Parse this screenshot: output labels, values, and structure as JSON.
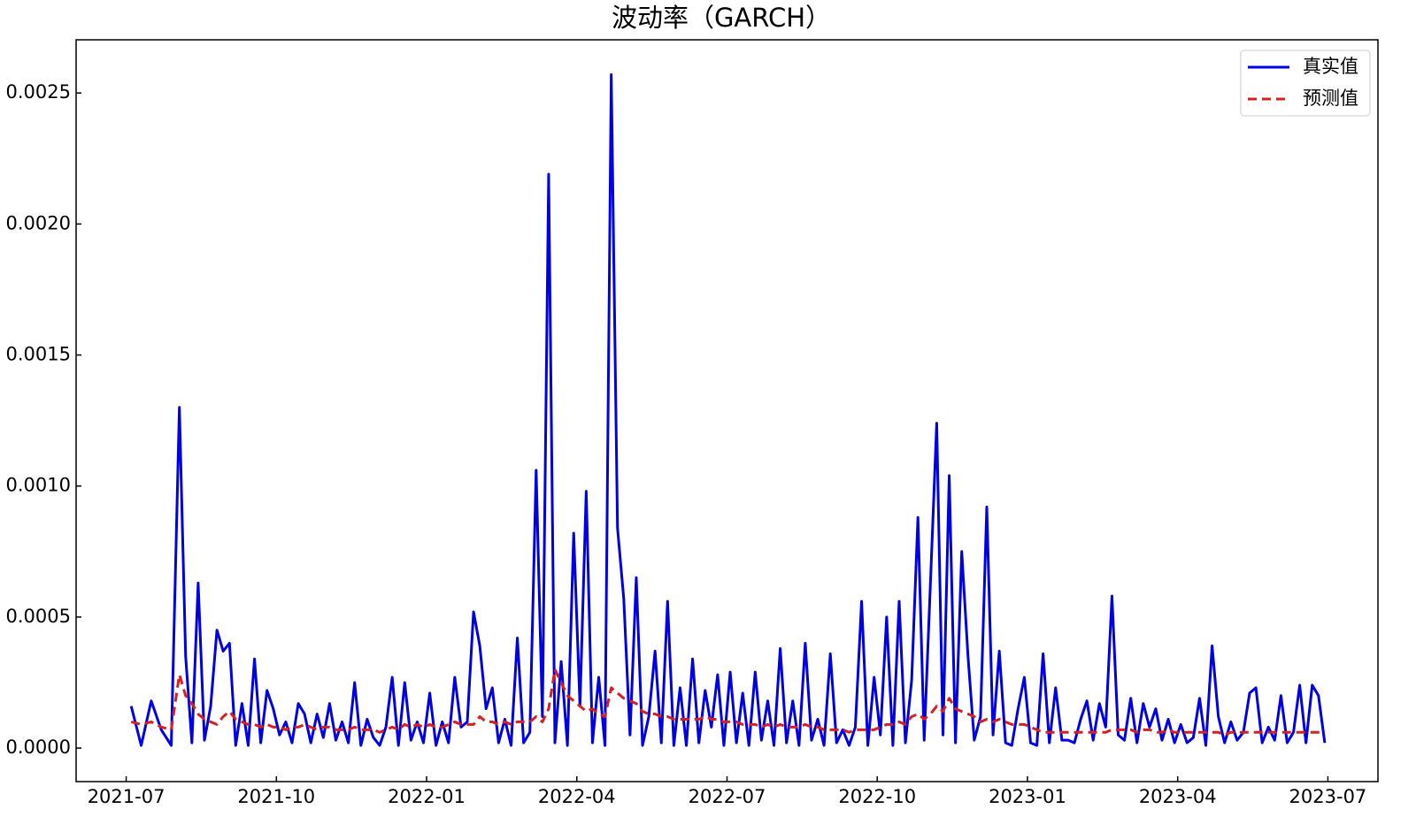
{
  "chart_data": {
    "type": "line",
    "title": "波动率（GARCH）",
    "x": [
      "2021-07",
      "2021-07",
      "2021-07",
      "2021-07",
      "2021-07",
      "2021-08",
      "2021-08",
      "2021-08",
      "2021-08",
      "2021-08",
      "2021-08",
      "2021-08",
      "2021-08",
      "2021-09",
      "2021-09",
      "2021-09",
      "2021-09",
      "2021-09",
      "2021-09",
      "2021-09",
      "2021-09",
      "2021-10",
      "2021-10",
      "2021-10",
      "2021-10",
      "2021-10",
      "2021-10",
      "2021-10",
      "2021-10",
      "2021-11",
      "2021-11",
      "2021-11",
      "2021-11",
      "2021-11",
      "2021-11",
      "2021-11",
      "2021-11",
      "2021-12",
      "2021-12",
      "2021-12",
      "2021-12",
      "2021-12",
      "2021-12",
      "2021-12",
      "2021-12",
      "2022-01",
      "2022-01",
      "2022-01",
      "2022-01",
      "2022-01",
      "2022-01",
      "2022-01",
      "2022-01",
      "2022-02",
      "2022-02",
      "2022-02",
      "2022-02",
      "2022-02",
      "2022-02",
      "2022-02",
      "2022-02",
      "2022-03",
      "2022-03",
      "2022-03",
      "2022-03",
      "2022-03",
      "2022-03",
      "2022-03",
      "2022-03",
      "2022-04",
      "2022-04",
      "2022-04",
      "2022-04",
      "2022-04",
      "2022-04",
      "2022-04",
      "2022-04",
      "2022-05",
      "2022-05",
      "2022-05",
      "2022-05",
      "2022-05",
      "2022-05",
      "2022-05",
      "2022-05",
      "2022-06",
      "2022-06",
      "2022-06",
      "2022-06",
      "2022-06",
      "2022-06",
      "2022-06",
      "2022-06",
      "2022-07",
      "2022-07",
      "2022-07",
      "2022-07",
      "2022-07",
      "2022-07",
      "2022-07",
      "2022-07",
      "2022-08",
      "2022-08",
      "2022-08",
      "2022-08",
      "2022-08",
      "2022-08",
      "2022-08",
      "2022-08",
      "2022-09",
      "2022-09",
      "2022-09",
      "2022-09",
      "2022-09",
      "2022-09",
      "2022-09",
      "2022-09",
      "2022-10",
      "2022-10",
      "2022-10",
      "2022-10",
      "2022-10",
      "2022-10",
      "2022-10",
      "2022-10",
      "2022-11",
      "2022-11",
      "2022-11",
      "2022-11",
      "2022-11",
      "2022-11",
      "2022-11",
      "2022-11",
      "2022-12",
      "2022-12",
      "2022-12",
      "2022-12",
      "2022-12",
      "2022-12",
      "2022-12",
      "2022-12",
      "2023-01",
      "2023-01",
      "2023-01",
      "2023-01",
      "2023-01",
      "2023-01",
      "2023-01",
      "2023-01",
      "2023-02",
      "2023-02",
      "2023-02",
      "2023-02",
      "2023-02",
      "2023-02",
      "2023-02",
      "2023-02",
      "2023-03",
      "2023-03",
      "2023-03",
      "2023-03",
      "2023-03",
      "2023-03",
      "2023-03",
      "2023-03",
      "2023-04",
      "2023-04",
      "2023-04",
      "2023-04",
      "2023-04",
      "2023-04",
      "2023-04",
      "2023-04",
      "2023-05",
      "2023-05",
      "2023-05",
      "2023-05",
      "2023-05",
      "2023-05",
      "2023-05",
      "2023-05",
      "2023-06",
      "2023-06",
      "2023-06",
      "2023-06",
      "2023-06",
      "2023-06",
      "2023-06",
      "2023-06"
    ],
    "series": [
      {
        "name": "真实值",
        "color": "#0000e6",
        "dash": false,
        "values": [
          0.00016,
          1e-05,
          0.00018,
          7e-05,
          1e-05,
          0.0013,
          0.00035,
          2e-05,
          0.00063,
          3e-05,
          0.00016,
          0.00045,
          0.00037,
          0.0004,
          1e-05,
          0.00017,
          1e-05,
          0.00034,
          2e-05,
          0.00022,
          0.00015,
          5e-05,
          0.0001,
          2e-05,
          0.00017,
          0.00013,
          2e-05,
          0.00013,
          4e-05,
          0.00017,
          3e-05,
          0.0001,
          2e-05,
          0.00025,
          1e-05,
          0.00011,
          4e-05,
          1e-05,
          8e-05,
          0.00027,
          1e-05,
          0.00025,
          3e-05,
          0.0001,
          2e-05,
          0.00021,
          1e-05,
          0.0001,
          2e-05,
          0.00027,
          8e-05,
          0.0001,
          0.00052,
          0.00039,
          0.00015,
          0.00023,
          2e-05,
          0.00011,
          1e-05,
          0.00042,
          2e-05,
          6e-05,
          0.00106,
          0.00012,
          0.00219,
          2e-05,
          0.00033,
          1e-05,
          0.00082,
          0.00016,
          0.00098,
          2e-05,
          0.00027,
          1e-05,
          0.00257,
          0.00084,
          0.00057,
          5e-05,
          0.00065,
          1e-05,
          0.00012,
          0.00037,
          2e-05,
          0.00056,
          1e-05,
          0.00023,
          1e-05,
          0.00034,
          2e-05,
          0.00022,
          8e-05,
          0.00028,
          1e-05,
          0.00029,
          2e-05,
          0.00021,
          1e-05,
          0.00029,
          3e-05,
          0.00018,
          1e-05,
          0.00038,
          2e-05,
          0.00018,
          1e-05,
          0.0004,
          3e-05,
          0.00011,
          1e-05,
          0.00036,
          2e-05,
          7e-05,
          1e-05,
          8e-05,
          0.00056,
          1e-05,
          0.00027,
          5e-05,
          0.0005,
          1e-05,
          0.00056,
          2e-05,
          0.00026,
          0.00088,
          3e-05,
          0.00063,
          0.00124,
          5e-05,
          0.00104,
          2e-05,
          0.00075,
          0.00035,
          3e-05,
          0.00012,
          0.00092,
          5e-05,
          0.00037,
          2e-05,
          1e-05,
          0.00015,
          0.00027,
          2e-05,
          1e-05,
          0.00036,
          2e-05,
          0.00023,
          3e-05,
          3e-05,
          2e-05,
          0.00011,
          0.00018,
          3e-05,
          0.00017,
          8e-05,
          0.00058,
          5e-05,
          3e-05,
          0.00019,
          2e-05,
          0.00017,
          8e-05,
          0.00015,
          3e-05,
          0.00011,
          2e-05,
          9e-05,
          2e-05,
          4e-05,
          0.00019,
          1e-05,
          0.00039,
          0.00012,
          2e-05,
          0.0001,
          3e-05,
          6e-05,
          0.00021,
          0.00023,
          2e-05,
          8e-05,
          3e-05,
          0.0002,
          2e-05,
          6e-05,
          0.00024,
          2e-05,
          0.00024,
          0.0002,
          2e-05
        ]
      },
      {
        "name": "预测值",
        "color": "#d62020",
        "dash": true,
        "values": [
          0.0001,
          9e-05,
          0.0001,
          8e-05,
          7e-05,
          0.00028,
          0.0002,
          0.00017,
          0.00013,
          0.00011,
          0.0001,
          9e-05,
          0.00012,
          0.00014,
          0.00011,
          0.0001,
          9e-05,
          9e-05,
          8e-05,
          9e-05,
          8e-05,
          8e-05,
          7e-05,
          8e-05,
          8e-05,
          9e-05,
          8e-05,
          7e-05,
          8e-05,
          8e-05,
          7e-05,
          7e-05,
          7e-05,
          8e-05,
          7e-05,
          7e-05,
          7e-05,
          6e-05,
          7e-05,
          8e-05,
          7e-05,
          9e-05,
          8e-05,
          9e-05,
          8e-05,
          9e-05,
          8e-05,
          8e-05,
          9e-05,
          0.0001,
          9e-05,
          9e-05,
          9e-05,
          0.00012,
          0.0001,
          0.0001,
          9e-05,
          0.0001,
          9e-05,
          0.0001,
          0.0001,
          0.0001,
          0.00012,
          0.0001,
          0.00015,
          0.0003,
          0.00025,
          0.0002,
          0.00018,
          0.00016,
          0.00014,
          0.00015,
          0.00013,
          0.00012,
          0.00023,
          0.00021,
          0.00019,
          0.00018,
          0.00017,
          0.00014,
          0.00013,
          0.00013,
          0.00012,
          0.00012,
          0.00011,
          0.00011,
          0.00011,
          0.00011,
          0.00011,
          0.00012,
          0.00011,
          0.00011,
          0.0001,
          0.0001,
          0.0001,
          9e-05,
          9e-05,
          9e-05,
          8e-05,
          9e-05,
          8e-05,
          9e-05,
          8e-05,
          8e-05,
          8e-05,
          9e-05,
          8e-05,
          8e-05,
          7e-05,
          7e-05,
          7e-05,
          7e-05,
          6e-05,
          7e-05,
          7e-05,
          7e-05,
          7e-05,
          8e-05,
          9e-05,
          9e-05,
          0.0001,
          9e-05,
          0.00012,
          0.00013,
          0.00011,
          0.00013,
          0.00016,
          0.00014,
          0.00019,
          0.00015,
          0.00014,
          0.00013,
          0.00012,
          0.0001,
          0.00011,
          0.0001,
          0.00011,
          0.0001,
          9e-05,
          9e-05,
          9e-05,
          8e-05,
          7e-05,
          6e-05,
          6e-05,
          6e-05,
          6e-05,
          6e-05,
          6e-05,
          6e-05,
          6e-05,
          6e-05,
          6e-05,
          6e-05,
          7e-05,
          7e-05,
          7e-05,
          7e-05,
          6e-05,
          7e-05,
          7e-05,
          6e-05,
          6e-05,
          7e-05,
          6e-05,
          6e-05,
          6e-05,
          6e-05,
          6e-05,
          6e-05,
          6e-05,
          6e-05,
          5e-05,
          6e-05,
          6e-05,
          6e-05,
          6e-05,
          6e-05,
          6e-05,
          6e-05,
          6e-05,
          6e-05,
          6e-05,
          6e-05,
          6e-05,
          6e-05,
          6e-05,
          6e-05,
          6e-05
        ]
      }
    ],
    "xlim": [
      "2021-06",
      "2023-08"
    ],
    "xticks": [
      "2021-07",
      "2021-10",
      "2022-01",
      "2022-04",
      "2022-07",
      "2022-10",
      "2023-01",
      "2023-04",
      "2023-07"
    ],
    "ylim": [
      -0.000128,
      0.002703
    ],
    "yticks": [
      {
        "value": 0,
        "label": "0.0000"
      },
      {
        "value": 0.0005,
        "label": "0.0005"
      },
      {
        "value": 0.001,
        "label": "0.0010"
      },
      {
        "value": 0.0015,
        "label": "0.0015"
      },
      {
        "value": 0.002,
        "label": "0.0020"
      },
      {
        "value": 0.0025,
        "label": "0.0025"
      }
    ],
    "grid": false,
    "legend": "upper right"
  }
}
